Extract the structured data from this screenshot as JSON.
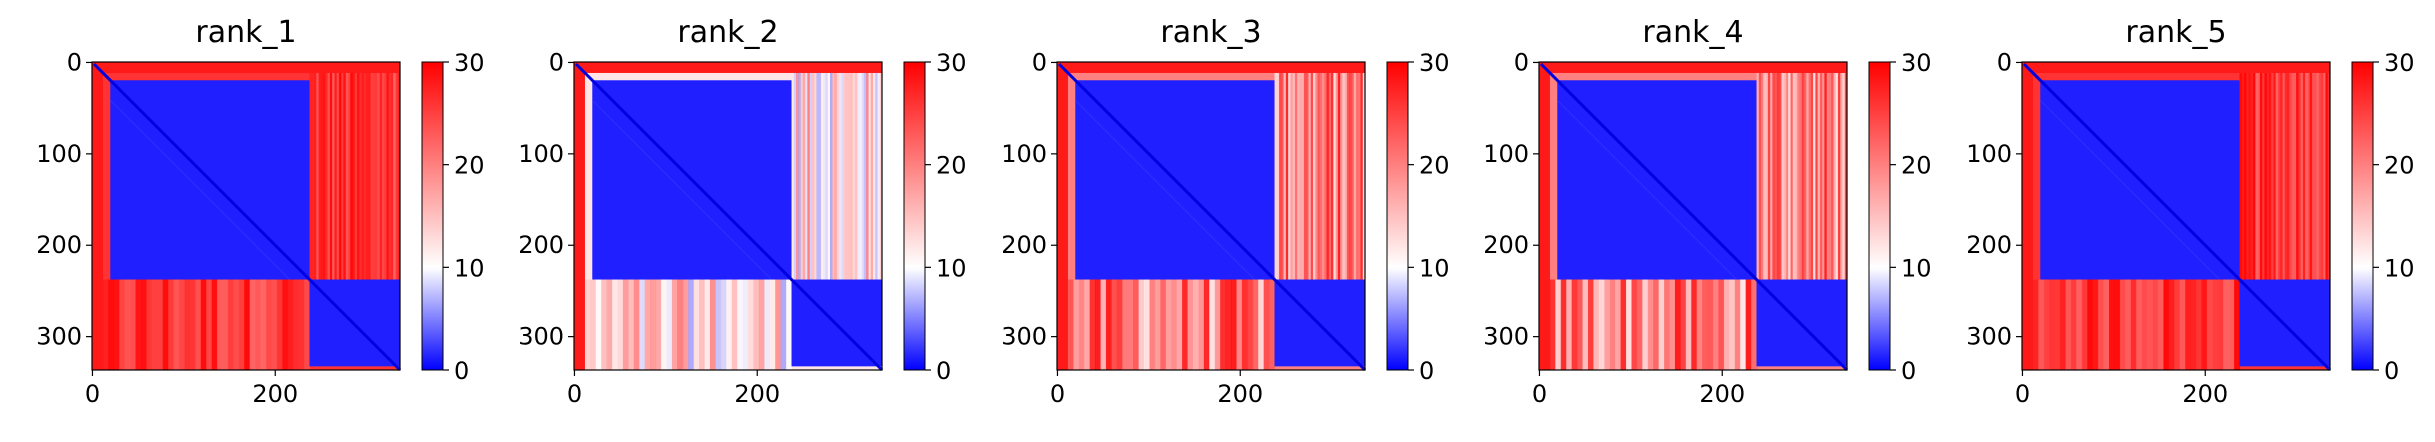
{
  "chart_data": [
    {
      "type": "heatmap",
      "title": "rank_1",
      "matrix_size": 337,
      "domain_split": 238,
      "offdiag_fill": "red",
      "x_ticks": [
        0,
        200
      ],
      "y_ticks": [
        0,
        100,
        200,
        300
      ],
      "x_tick_labels": [
        "0",
        "200"
      ],
      "y_tick_labels": [
        "0",
        "100",
        "200",
        "300"
      ],
      "colorbar": {
        "range": [
          0,
          30
        ],
        "ticks": [
          0,
          10,
          20,
          30
        ],
        "tick_labels": [
          "0",
          "10",
          "20",
          "30"
        ],
        "cmap": "bwr"
      }
    },
    {
      "type": "heatmap",
      "title": "rank_2",
      "matrix_size": 337,
      "domain_split": 238,
      "offdiag_fill": "light",
      "x_ticks": [
        0,
        200
      ],
      "y_ticks": [
        0,
        100,
        200,
        300
      ],
      "x_tick_labels": [
        "0",
        "200"
      ],
      "y_tick_labels": [
        "0",
        "100",
        "200",
        "300"
      ],
      "colorbar": {
        "range": [
          0,
          30
        ],
        "ticks": [
          0,
          10,
          20,
          30
        ],
        "tick_labels": [
          "0",
          "10",
          "20",
          "30"
        ],
        "cmap": "bwr"
      }
    },
    {
      "type": "heatmap",
      "title": "rank_3",
      "matrix_size": 337,
      "domain_split": 238,
      "offdiag_fill": "mixed",
      "x_ticks": [
        0,
        200
      ],
      "y_ticks": [
        0,
        100,
        200,
        300
      ],
      "x_tick_labels": [
        "0",
        "200"
      ],
      "y_tick_labels": [
        "0",
        "100",
        "200",
        "300"
      ],
      "colorbar": {
        "range": [
          0,
          30
        ],
        "ticks": [
          0,
          10,
          20,
          30
        ],
        "tick_labels": [
          "0",
          "10",
          "20",
          "30"
        ],
        "cmap": "bwr"
      }
    },
    {
      "type": "heatmap",
      "title": "rank_4",
      "matrix_size": 337,
      "domain_split": 238,
      "offdiag_fill": "mixed",
      "x_ticks": [
        0,
        200
      ],
      "y_ticks": [
        0,
        100,
        200,
        300
      ],
      "x_tick_labels": [
        "0",
        "200"
      ],
      "y_tick_labels": [
        "0",
        "100",
        "200",
        "300"
      ],
      "colorbar": {
        "range": [
          0,
          30
        ],
        "ticks": [
          0,
          10,
          20,
          30
        ],
        "tick_labels": [
          "0",
          "10",
          "20",
          "30"
        ],
        "cmap": "bwr"
      }
    },
    {
      "type": "heatmap",
      "title": "rank_5",
      "matrix_size": 337,
      "domain_split": 238,
      "offdiag_fill": "red",
      "x_ticks": [
        0,
        200
      ],
      "y_ticks": [
        0,
        100,
        200,
        300
      ],
      "x_tick_labels": [
        "0",
        "200"
      ],
      "y_tick_labels": [
        "0",
        "100",
        "200",
        "300"
      ],
      "colorbar": {
        "range": [
          0,
          30
        ],
        "ticks": [
          0,
          10,
          20,
          30
        ],
        "tick_labels": [
          "0",
          "10",
          "20",
          "30"
        ],
        "cmap": "bwr"
      }
    }
  ],
  "colors": {
    "blue": "#1e1eff",
    "white": "#ffffff",
    "red": "#ff1e1e",
    "axis": "#000000"
  }
}
